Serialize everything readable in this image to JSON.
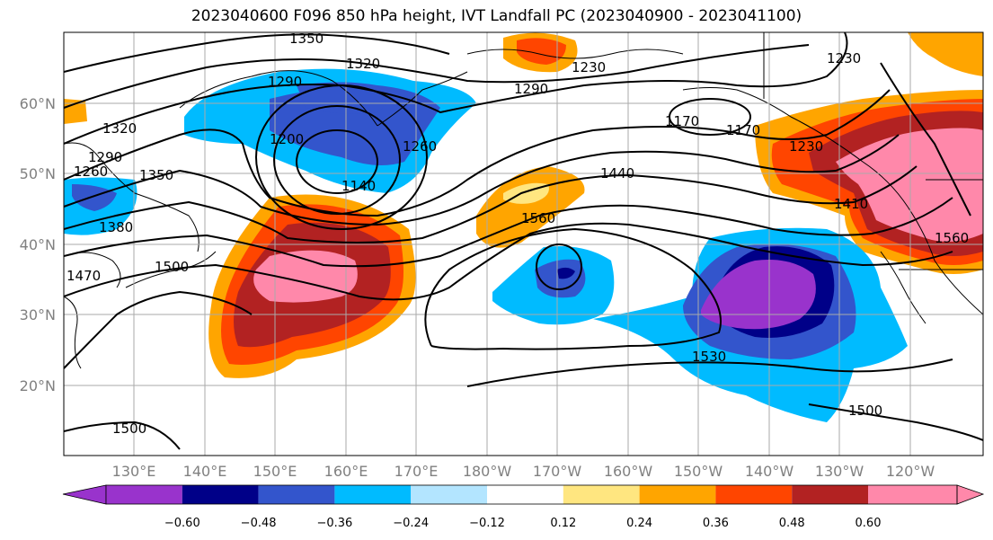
{
  "title": "2023040600 F096 850 hPa height, IVT Landfall PC (2023040900 - 2023041100)",
  "lat_labels": [
    "60°N",
    "50°N",
    "40°N",
    "30°N",
    "20°N"
  ],
  "lon_labels": [
    "130°E",
    "140°E",
    "150°E",
    "160°E",
    "170°E",
    "180°W",
    "170°W",
    "160°W",
    "150°W",
    "140°W",
    "130°W",
    "120°W"
  ],
  "contour_labels": [
    "1350",
    "1320",
    "1230",
    "1290",
    "1290",
    "1260",
    "1200",
    "1140",
    "1170",
    "1230",
    "1320",
    "1290",
    "1260",
    "1350",
    "1380",
    "1470",
    "1500",
    "1440",
    "1560",
    "1410",
    "1560",
    "1530",
    "1500",
    "1500",
    "1230",
    "1170"
  ],
  "colorbar": {
    "tick_labels": [
      "−0.60",
      "−0.48",
      "−0.36",
      "−0.24",
      "−0.12",
      "0.12",
      "0.24",
      "0.36",
      "0.48",
      "0.60"
    ],
    "colors": [
      "#9933cc",
      "#000088",
      "#3355cc",
      "#00bbff",
      "#b3e5ff",
      "#ffffff",
      "#ffe680",
      "#ffa500",
      "#ff4500",
      "#b22222",
      "#ff88aa",
      "#ff88aa"
    ]
  }
}
